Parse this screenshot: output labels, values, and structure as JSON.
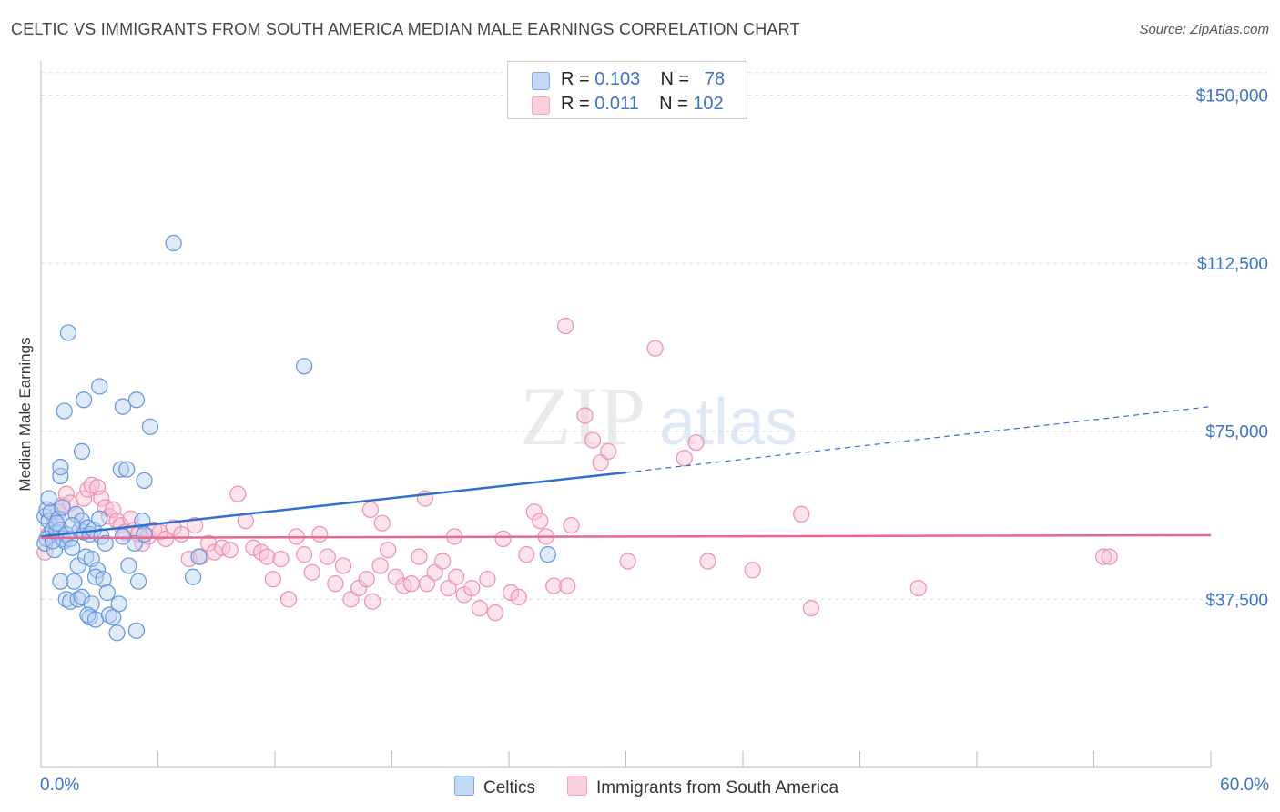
{
  "title": "CELTIC VS IMMIGRANTS FROM SOUTH AMERICA MEDIAN MALE EARNINGS CORRELATION CHART",
  "source": "Source: ZipAtlas.com",
  "watermark": {
    "zip": "ZIP",
    "atlas": "atlas"
  },
  "legend": {
    "celtic": {
      "r_label": "R =",
      "r_value": "0.103",
      "n_label": "N =",
      "n_value": "78"
    },
    "immig": {
      "r_label": "R =",
      "r_value": "0.011",
      "n_label": "N =",
      "n_value": "102"
    }
  },
  "colors": {
    "celtic": "#7aaae8",
    "celtic_line": "#2f6fcf",
    "immig": "#f3a3bd",
    "immig_line": "#e26a95",
    "axis_text": "#3a73c8"
  },
  "chart_data": {
    "type": "scatter",
    "title": "CELTIC VS IMMIGRANTS FROM SOUTH AMERICA MEDIAN MALE EARNINGS CORRELATION CHART",
    "xlabel": "",
    "ylabel": "Median Male Earnings",
    "xlim": [
      0,
      60
    ],
    "ylim": [
      0,
      157000
    ],
    "x_tick_labels": [
      "0.0%",
      "60.0%"
    ],
    "y_ticks": [
      {
        "value": 37500,
        "label": "$37,500"
      },
      {
        "value": 75000,
        "label": "$75,000"
      },
      {
        "value": 112500,
        "label": "$112,500"
      },
      {
        "value": 150000,
        "label": "$150,000"
      }
    ],
    "series": [
      {
        "name": "Celtics",
        "trend": {
          "x0": 0,
          "y0": 51500,
          "x1": 30,
          "y1": 65800,
          "dash_to_x": 60,
          "dash_to_y": 80500
        },
        "points": [
          [
            0.2,
            56000
          ],
          [
            0.3,
            57500
          ],
          [
            0.4,
            55000
          ],
          [
            0.5,
            52000
          ],
          [
            0.3,
            51000
          ],
          [
            0.6,
            53000
          ],
          [
            0.2,
            50000
          ],
          [
            0.8,
            52500
          ],
          [
            0.5,
            57000
          ],
          [
            0.9,
            55500
          ],
          [
            1.0,
            53000
          ],
          [
            0.7,
            48500
          ],
          [
            1.1,
            51000
          ],
          [
            0.4,
            60000
          ],
          [
            1.2,
            50500
          ],
          [
            1.3,
            52000
          ],
          [
            1.0,
            65000
          ],
          [
            1.0,
            67000
          ],
          [
            1.1,
            58000
          ],
          [
            1.5,
            51000
          ],
          [
            1.6,
            49000
          ],
          [
            1.8,
            56500
          ],
          [
            1.9,
            45000
          ],
          [
            2.0,
            53000
          ],
          [
            2.2,
            52500
          ],
          [
            2.1,
            55000
          ],
          [
            2.4,
            53500
          ],
          [
            2.5,
            52000
          ],
          [
            2.7,
            53000
          ],
          [
            2.3,
            47000
          ],
          [
            2.6,
            46500
          ],
          [
            3.0,
            55500
          ],
          [
            3.1,
            51500
          ],
          [
            3.3,
            50000
          ],
          [
            2.9,
            44000
          ],
          [
            2.8,
            42500
          ],
          [
            3.2,
            42000
          ],
          [
            3.4,
            39000
          ],
          [
            1.0,
            41500
          ],
          [
            1.7,
            41500
          ],
          [
            1.3,
            37500
          ],
          [
            1.5,
            37000
          ],
          [
            1.9,
            37500
          ],
          [
            2.1,
            38000
          ],
          [
            2.6,
            36500
          ],
          [
            2.5,
            33500
          ],
          [
            2.4,
            34000
          ],
          [
            2.8,
            33000
          ],
          [
            3.5,
            34000
          ],
          [
            3.7,
            33500
          ],
          [
            4.0,
            36500
          ],
          [
            3.9,
            30000
          ],
          [
            4.9,
            30500
          ],
          [
            4.5,
            45000
          ],
          [
            4.8,
            50000
          ],
          [
            5.0,
            41500
          ],
          [
            4.2,
            51500
          ],
          [
            5.2,
            55000
          ],
          [
            5.3,
            52000
          ],
          [
            4.1,
            66500
          ],
          [
            4.4,
            66500
          ],
          [
            5.3,
            64000
          ],
          [
            2.1,
            70500
          ],
          [
            2.2,
            82000
          ],
          [
            1.2,
            79500
          ],
          [
            3.0,
            85000
          ],
          [
            4.2,
            80500
          ],
          [
            4.9,
            82000
          ],
          [
            5.6,
            76000
          ],
          [
            1.4,
            97000
          ],
          [
            6.8,
            117000
          ],
          [
            13.5,
            89500
          ],
          [
            7.8,
            42500
          ],
          [
            8.1,
            47000
          ],
          [
            26,
            47500
          ],
          [
            0.6,
            50500
          ],
          [
            0.8,
            54500
          ],
          [
            1.6,
            54000
          ]
        ]
      },
      {
        "name": "Immigrants from South America",
        "trend": {
          "x0": 0,
          "y0": 51200,
          "x1": 60,
          "y1": 51800
        },
        "points": [
          [
            0.2,
            48000
          ],
          [
            0.4,
            52000
          ],
          [
            0.7,
            55000
          ],
          [
            0.9,
            57000
          ],
          [
            1.1,
            58500
          ],
          [
            1.3,
            61000
          ],
          [
            1.5,
            59000
          ],
          [
            1.8,
            56500
          ],
          [
            2.0,
            53000
          ],
          [
            2.2,
            60000
          ],
          [
            2.4,
            62000
          ],
          [
            2.6,
            63000
          ],
          [
            2.9,
            62500
          ],
          [
            3.1,
            60000
          ],
          [
            3.3,
            58000
          ],
          [
            3.5,
            56000
          ],
          [
            3.7,
            57500
          ],
          [
            3.9,
            55000
          ],
          [
            4.1,
            54000
          ],
          [
            4.3,
            52500
          ],
          [
            4.6,
            55500
          ],
          [
            4.8,
            53000
          ],
          [
            5.0,
            52000
          ],
          [
            5.2,
            50000
          ],
          [
            5.5,
            51500
          ],
          [
            5.8,
            53000
          ],
          [
            6.1,
            52500
          ],
          [
            6.4,
            51000
          ],
          [
            6.8,
            53500
          ],
          [
            7.2,
            52000
          ],
          [
            7.6,
            46500
          ],
          [
            7.9,
            54000
          ],
          [
            8.2,
            47000
          ],
          [
            8.6,
            50000
          ],
          [
            8.9,
            48000
          ],
          [
            9.3,
            49000
          ],
          [
            9.7,
            48500
          ],
          [
            10.1,
            61000
          ],
          [
            10.5,
            55000
          ],
          [
            10.9,
            49000
          ],
          [
            11.3,
            48000
          ],
          [
            11.6,
            47000
          ],
          [
            11.9,
            42000
          ],
          [
            12.3,
            46500
          ],
          [
            12.7,
            37500
          ],
          [
            13.1,
            51500
          ],
          [
            13.5,
            47500
          ],
          [
            13.9,
            43500
          ],
          [
            14.3,
            52000
          ],
          [
            14.7,
            47000
          ],
          [
            15.1,
            41000
          ],
          [
            15.5,
            45000
          ],
          [
            15.9,
            37500
          ],
          [
            16.3,
            40000
          ],
          [
            16.7,
            42000
          ],
          [
            17.0,
            37000
          ],
          [
            17.4,
            45000
          ],
          [
            17.8,
            48500
          ],
          [
            18.2,
            42500
          ],
          [
            18.6,
            40500
          ],
          [
            19.0,
            41000
          ],
          [
            19.4,
            47000
          ],
          [
            19.8,
            41000
          ],
          [
            20.2,
            43500
          ],
          [
            20.6,
            46000
          ],
          [
            20.9,
            40000
          ],
          [
            21.3,
            42500
          ],
          [
            21.7,
            38500
          ],
          [
            22.1,
            40000
          ],
          [
            22.5,
            35500
          ],
          [
            22.9,
            42000
          ],
          [
            23.3,
            34500
          ],
          [
            23.7,
            51000
          ],
          [
            24.1,
            39000
          ],
          [
            24.5,
            38000
          ],
          [
            24.9,
            47500
          ],
          [
            25.3,
            57000
          ],
          [
            25.6,
            55000
          ],
          [
            25.9,
            51500
          ],
          [
            26.3,
            40500
          ],
          [
            27.2,
            54000
          ],
          [
            27.9,
            78500
          ],
          [
            28.3,
            73000
          ],
          [
            28.7,
            68000
          ],
          [
            29.1,
            70500
          ],
          [
            21.2,
            51500
          ],
          [
            17.5,
            54500
          ],
          [
            19.7,
            60000
          ],
          [
            33.0,
            69000
          ],
          [
            33.6,
            72500
          ],
          [
            34.2,
            46000
          ],
          [
            36.5,
            44000
          ],
          [
            39.5,
            35500
          ],
          [
            45.0,
            40000
          ],
          [
            54.5,
            47000
          ],
          [
            54.8,
            47000
          ],
          [
            39.0,
            56500
          ],
          [
            26.9,
            98500
          ],
          [
            31.5,
            93500
          ],
          [
            27.0,
            40500
          ],
          [
            30.1,
            46000
          ],
          [
            16.9,
            57500
          ]
        ]
      }
    ]
  },
  "bottom_legend": {
    "celtic_label": "Celtics",
    "immig_label": "Immigrants from South America"
  }
}
